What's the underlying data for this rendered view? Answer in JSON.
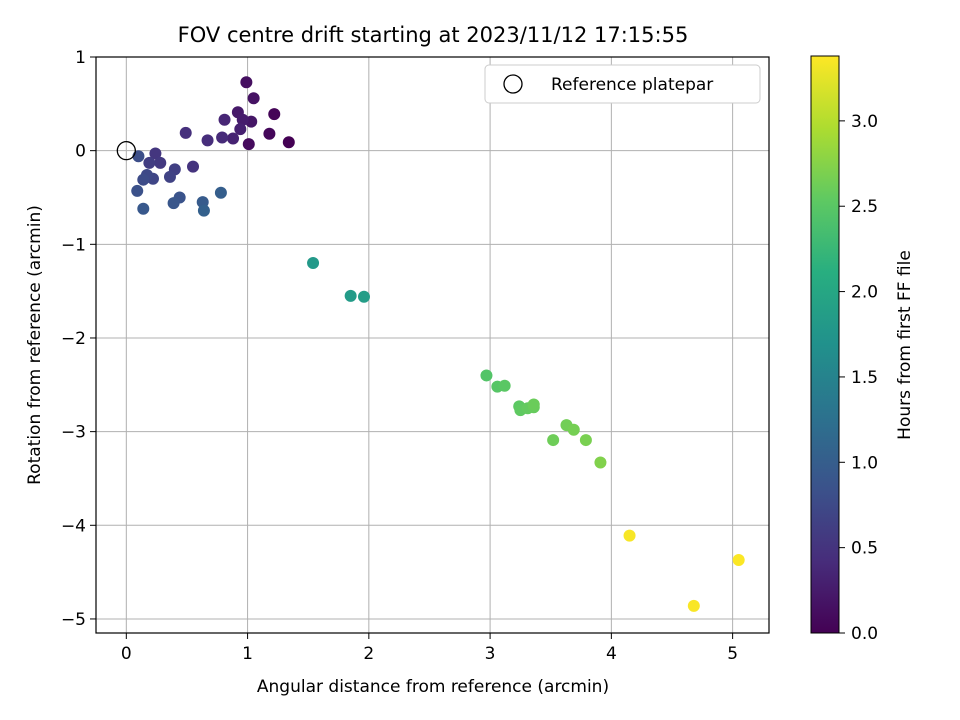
{
  "chart_data": {
    "type": "scatter",
    "title": "FOV centre drift starting at 2023/11/12 17:15:55",
    "xlabel": "Angular distance from reference (arcmin)",
    "ylabel": "Rotation from reference (arcmin)",
    "xlim": [
      -0.25,
      5.3
    ],
    "ylim": [
      -5.15,
      1.0
    ],
    "xticks": [
      "0",
      "1",
      "2",
      "3",
      "4",
      "5"
    ],
    "yticks": [
      "1",
      "0",
      "−1",
      "−2",
      "−3",
      "−4",
      "−5"
    ],
    "grid": true,
    "legend": {
      "placement": "upper-right",
      "entries": [
        "Reference platepar"
      ]
    },
    "reference_point": {
      "x": 0.0,
      "y": 0.0
    },
    "colorbar": {
      "label": "Hours from first FF file",
      "range": [
        0,
        3.38
      ],
      "ticks": [
        "0.0",
        "0.5",
        "1.0",
        "1.5",
        "2.0",
        "2.5",
        "3.0"
      ],
      "colormap": "viridis"
    },
    "points": [
      {
        "x": 1.34,
        "y": 0.09,
        "c": 0.0
      },
      {
        "x": 1.22,
        "y": 0.39,
        "c": 0.03
      },
      {
        "x": 1.18,
        "y": 0.18,
        "c": 0.06
      },
      {
        "x": 1.01,
        "y": 0.07,
        "c": 0.1
      },
      {
        "x": 0.99,
        "y": 0.73,
        "c": 0.13
      },
      {
        "x": 1.05,
        "y": 0.56,
        "c": 0.16
      },
      {
        "x": 1.03,
        "y": 0.31,
        "c": 0.2
      },
      {
        "x": 0.92,
        "y": 0.41,
        "c": 0.23
      },
      {
        "x": 0.96,
        "y": 0.33,
        "c": 0.26
      },
      {
        "x": 0.94,
        "y": 0.23,
        "c": 0.3
      },
      {
        "x": 0.88,
        "y": 0.13,
        "c": 0.33
      },
      {
        "x": 0.81,
        "y": 0.33,
        "c": 0.36
      },
      {
        "x": 0.79,
        "y": 0.14,
        "c": 0.4
      },
      {
        "x": 0.67,
        "y": 0.11,
        "c": 0.43
      },
      {
        "x": 0.49,
        "y": 0.19,
        "c": 0.46
      },
      {
        "x": 0.55,
        "y": -0.17,
        "c": 0.5
      },
      {
        "x": 0.24,
        "y": -0.03,
        "c": 0.53
      },
      {
        "x": 0.28,
        "y": -0.13,
        "c": 0.56
      },
      {
        "x": 0.19,
        "y": -0.13,
        "c": 0.6
      },
      {
        "x": 0.4,
        "y": -0.2,
        "c": 0.63
      },
      {
        "x": 0.36,
        "y": -0.28,
        "c": 0.66
      },
      {
        "x": 0.22,
        "y": -0.3,
        "c": 0.7
      },
      {
        "x": 0.17,
        "y": -0.26,
        "c": 0.73
      },
      {
        "x": 0.14,
        "y": -0.31,
        "c": 0.76
      },
      {
        "x": 0.1,
        "y": -0.06,
        "c": 0.8
      },
      {
        "x": 0.09,
        "y": -0.43,
        "c": 0.83
      },
      {
        "x": 0.44,
        "y": -0.5,
        "c": 0.86
      },
      {
        "x": 0.39,
        "y": -0.56,
        "c": 0.9
      },
      {
        "x": 0.14,
        "y": -0.62,
        "c": 0.93
      },
      {
        "x": 0.63,
        "y": -0.55,
        "c": 0.96
      },
      {
        "x": 0.78,
        "y": -0.45,
        "c": 1.0
      },
      {
        "x": 0.64,
        "y": -0.64,
        "c": 1.03
      },
      {
        "x": 1.54,
        "y": -1.2,
        "c": 1.8
      },
      {
        "x": 1.85,
        "y": -1.55,
        "c": 1.83
      },
      {
        "x": 1.96,
        "y": -1.56,
        "c": 1.86
      },
      {
        "x": 2.97,
        "y": -2.4,
        "c": 2.45
      },
      {
        "x": 3.06,
        "y": -2.52,
        "c": 2.48
      },
      {
        "x": 3.12,
        "y": -2.51,
        "c": 2.5
      },
      {
        "x": 3.24,
        "y": -2.73,
        "c": 2.52
      },
      {
        "x": 3.25,
        "y": -2.77,
        "c": 2.54
      },
      {
        "x": 3.31,
        "y": -2.75,
        "c": 2.56
      },
      {
        "x": 3.36,
        "y": -2.74,
        "c": 2.58
      },
      {
        "x": 3.36,
        "y": -2.71,
        "c": 2.6
      },
      {
        "x": 3.52,
        "y": -3.09,
        "c": 2.62
      },
      {
        "x": 3.63,
        "y": -2.93,
        "c": 2.64
      },
      {
        "x": 3.69,
        "y": -2.98,
        "c": 2.66
      },
      {
        "x": 3.79,
        "y": -3.09,
        "c": 2.68
      },
      {
        "x": 3.91,
        "y": -3.33,
        "c": 2.72
      },
      {
        "x": 4.15,
        "y": -4.11,
        "c": 3.35
      },
      {
        "x": 4.68,
        "y": -4.86,
        "c": 3.36
      },
      {
        "x": 5.05,
        "y": -4.37,
        "c": 3.37
      }
    ]
  }
}
